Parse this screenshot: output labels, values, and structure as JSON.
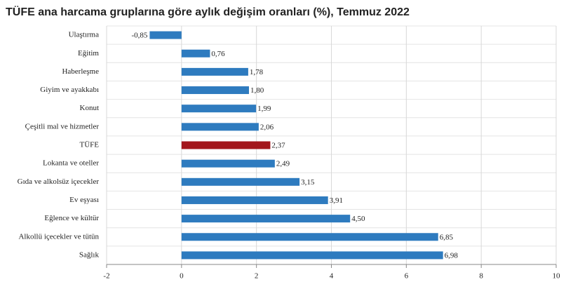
{
  "chart_data": {
    "type": "hbar",
    "title": "TÜFE ana harcama gruplarına göre aylık değişim oranları (%), Temmuz 2022",
    "categories": [
      "Ulaştırma",
      "Eğitim",
      "Haberleşme",
      "Giyim ve ayakkabı",
      "Konut",
      "Çeşitli mal ve hizmetler",
      "TÜFE",
      "Lokanta ve oteller",
      "Gıda ve alkolsüz içecekler",
      "Ev eşyası",
      "Eğlence ve kültür",
      "Alkollü içecekler ve tütün",
      "Sağlık"
    ],
    "values": [
      -0.85,
      0.76,
      1.78,
      1.8,
      1.99,
      2.06,
      2.37,
      2.49,
      3.15,
      3.91,
      4.5,
      6.85,
      6.98
    ],
    "value_labels": [
      "-0,85",
      "0,76",
      "1,78",
      "1,80",
      "1,99",
      "2,06",
      "2,37",
      "2,49",
      "3,15",
      "3,91",
      "4,50",
      "6,85",
      "6,98"
    ],
    "colors": [
      "#2e7bbf",
      "#2e7bbf",
      "#2e7bbf",
      "#2e7bbf",
      "#2e7bbf",
      "#2e7bbf",
      "#a3161c",
      "#2e7bbf",
      "#2e7bbf",
      "#2e7bbf",
      "#2e7bbf",
      "#2e7bbf",
      "#2e7bbf"
    ],
    "xlim": [
      -2,
      10
    ],
    "xticks": [
      -2,
      0,
      2,
      4,
      6,
      8,
      10
    ],
    "grid": true
  }
}
